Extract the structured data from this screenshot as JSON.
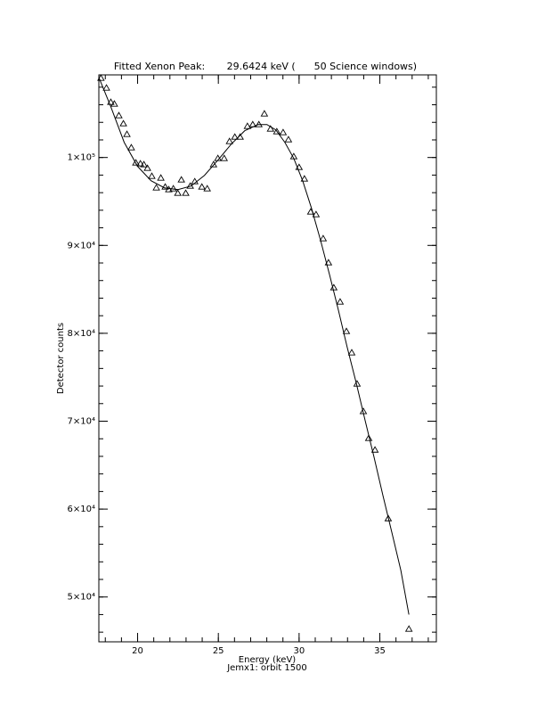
{
  "chart_data": {
    "type": "scatter",
    "title": "Fitted Xenon Peak:       29.6424 keV (      50 Science windows)",
    "x_label": "Energy (keV)",
    "subtitle": "Jemx1: orbit 1500",
    "y_label": "Detector counts",
    "xlim": [
      17.6,
      38.5
    ],
    "ylim": [
      44900,
      109400
    ],
    "xticks": [
      20,
      25,
      30,
      35
    ],
    "yticks": [
      {
        "value": 50000,
        "label": "5×10⁴"
      },
      {
        "value": 60000,
        "label": "6×10⁴"
      },
      {
        "value": 70000,
        "label": "7×10⁴"
      },
      {
        "value": 80000,
        "label": "8×10⁴"
      },
      {
        "value": 90000,
        "label": "9×10⁴"
      },
      {
        "value": 100000,
        "label": "1×10⁵"
      }
    ],
    "xminor": 5,
    "yminor": 5,
    "series": [
      {
        "type": "scatter",
        "color": "#000000",
        "x": [
          17.73,
          18.07,
          18.34,
          18.56,
          18.84,
          19.12,
          19.34,
          19.61,
          19.89,
          20.17,
          20.39,
          20.61,
          20.88,
          21.16,
          21.44,
          21.71,
          21.93,
          22.21,
          22.49,
          22.71,
          22.98,
          23.26,
          23.54,
          23.98,
          24.31,
          24.7,
          24.97,
          25.36,
          25.69,
          26.02,
          26.35,
          26.8,
          27.13,
          27.51,
          27.85,
          28.23,
          28.62,
          29.01,
          29.34,
          29.67,
          30.0,
          30.33,
          30.72,
          31.05,
          31.49,
          31.82,
          32.15,
          32.54,
          32.93,
          33.26,
          33.59,
          33.98,
          34.31,
          34.7,
          35.52,
          36.8
        ],
        "values": [
          109030,
          107910,
          106290,
          106090,
          104770,
          103850,
          102640,
          101120,
          99390,
          99290,
          99190,
          98780,
          97870,
          96550,
          97670,
          96650,
          96350,
          96450,
          95940,
          97460,
          95940,
          96750,
          97260,
          96650,
          96450,
          99190,
          99900,
          99900,
          101830,
          102330,
          102330,
          103550,
          103750,
          103750,
          104970,
          103250,
          102940,
          102840,
          102030,
          100100,
          98880,
          97570,
          93810,
          93510,
          90770,
          88030,
          85190,
          83570,
          80220,
          77790,
          74240,
          71110,
          68050,
          66730,
          58920,
          46350
        ]
      },
      {
        "type": "line",
        "color": "#000000",
        "x": [
          17.62,
          18.34,
          19.17,
          20.0,
          20.83,
          21.66,
          22.49,
          23.31,
          24.14,
          24.97,
          25.8,
          26.63,
          27.46,
          28.01,
          28.56,
          29.12,
          29.67,
          30.22,
          30.77,
          31.33,
          31.88,
          32.43,
          32.98,
          33.54,
          34.09,
          34.64,
          35.19,
          35.75,
          36.3,
          36.8
        ],
        "values": [
          109030,
          105780,
          101720,
          98990,
          97360,
          96550,
          96350,
          96750,
          97970,
          99700,
          101520,
          103040,
          103750,
          103750,
          103140,
          101720,
          99900,
          97360,
          94220,
          90570,
          86710,
          82660,
          78400,
          74340,
          70080,
          65920,
          61560,
          57300,
          53040,
          48000
        ]
      }
    ]
  }
}
